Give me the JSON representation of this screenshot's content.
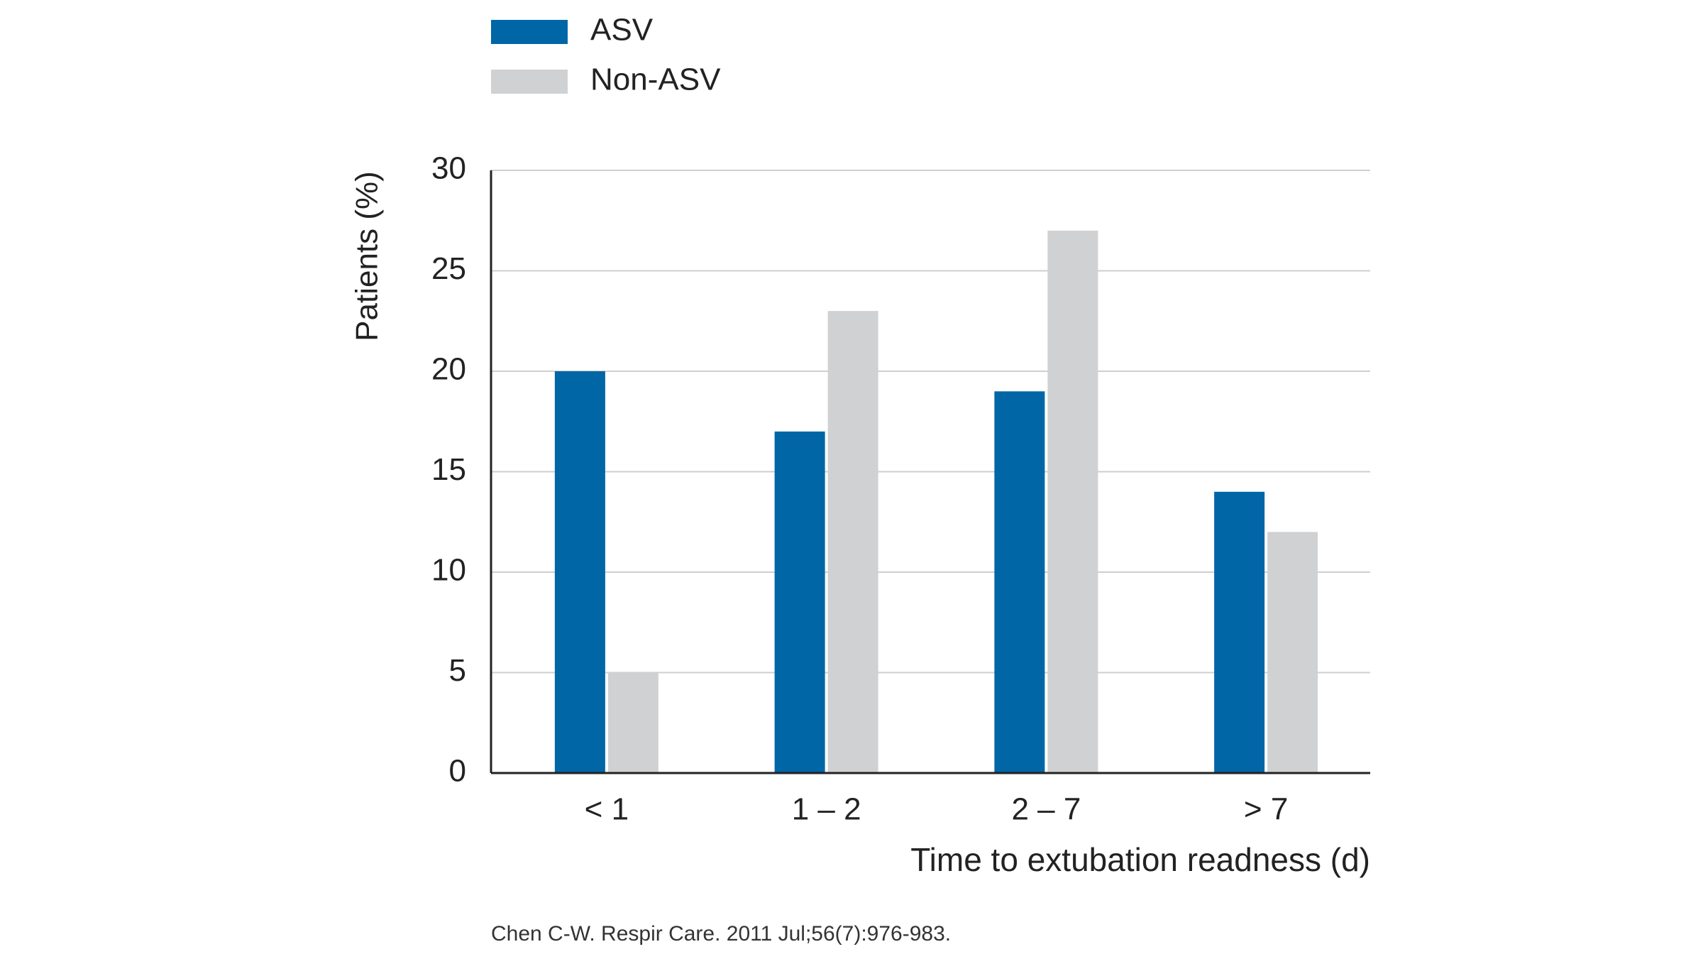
{
  "chart_data": {
    "type": "bar",
    "categories": [
      "< 1",
      "1 – 2",
      "2 – 7",
      "> 7"
    ],
    "series": [
      {
        "name": "ASV",
        "color": "#0066a6",
        "values": [
          20,
          17,
          19,
          14
        ]
      },
      {
        "name": "Non-ASV",
        "color": "#d0d1d3",
        "values": [
          5,
          23,
          27,
          12
        ]
      }
    ],
    "ylabel": "Patients (%)",
    "xlabel": "Time to extubation readness (d)",
    "ylim": [
      0,
      30
    ],
    "yticks": [
      0,
      5,
      10,
      15,
      20,
      25,
      30
    ],
    "grid": true,
    "source": "Chen C-W. Respir Care. 2011 Jul;56(7):976-983."
  }
}
